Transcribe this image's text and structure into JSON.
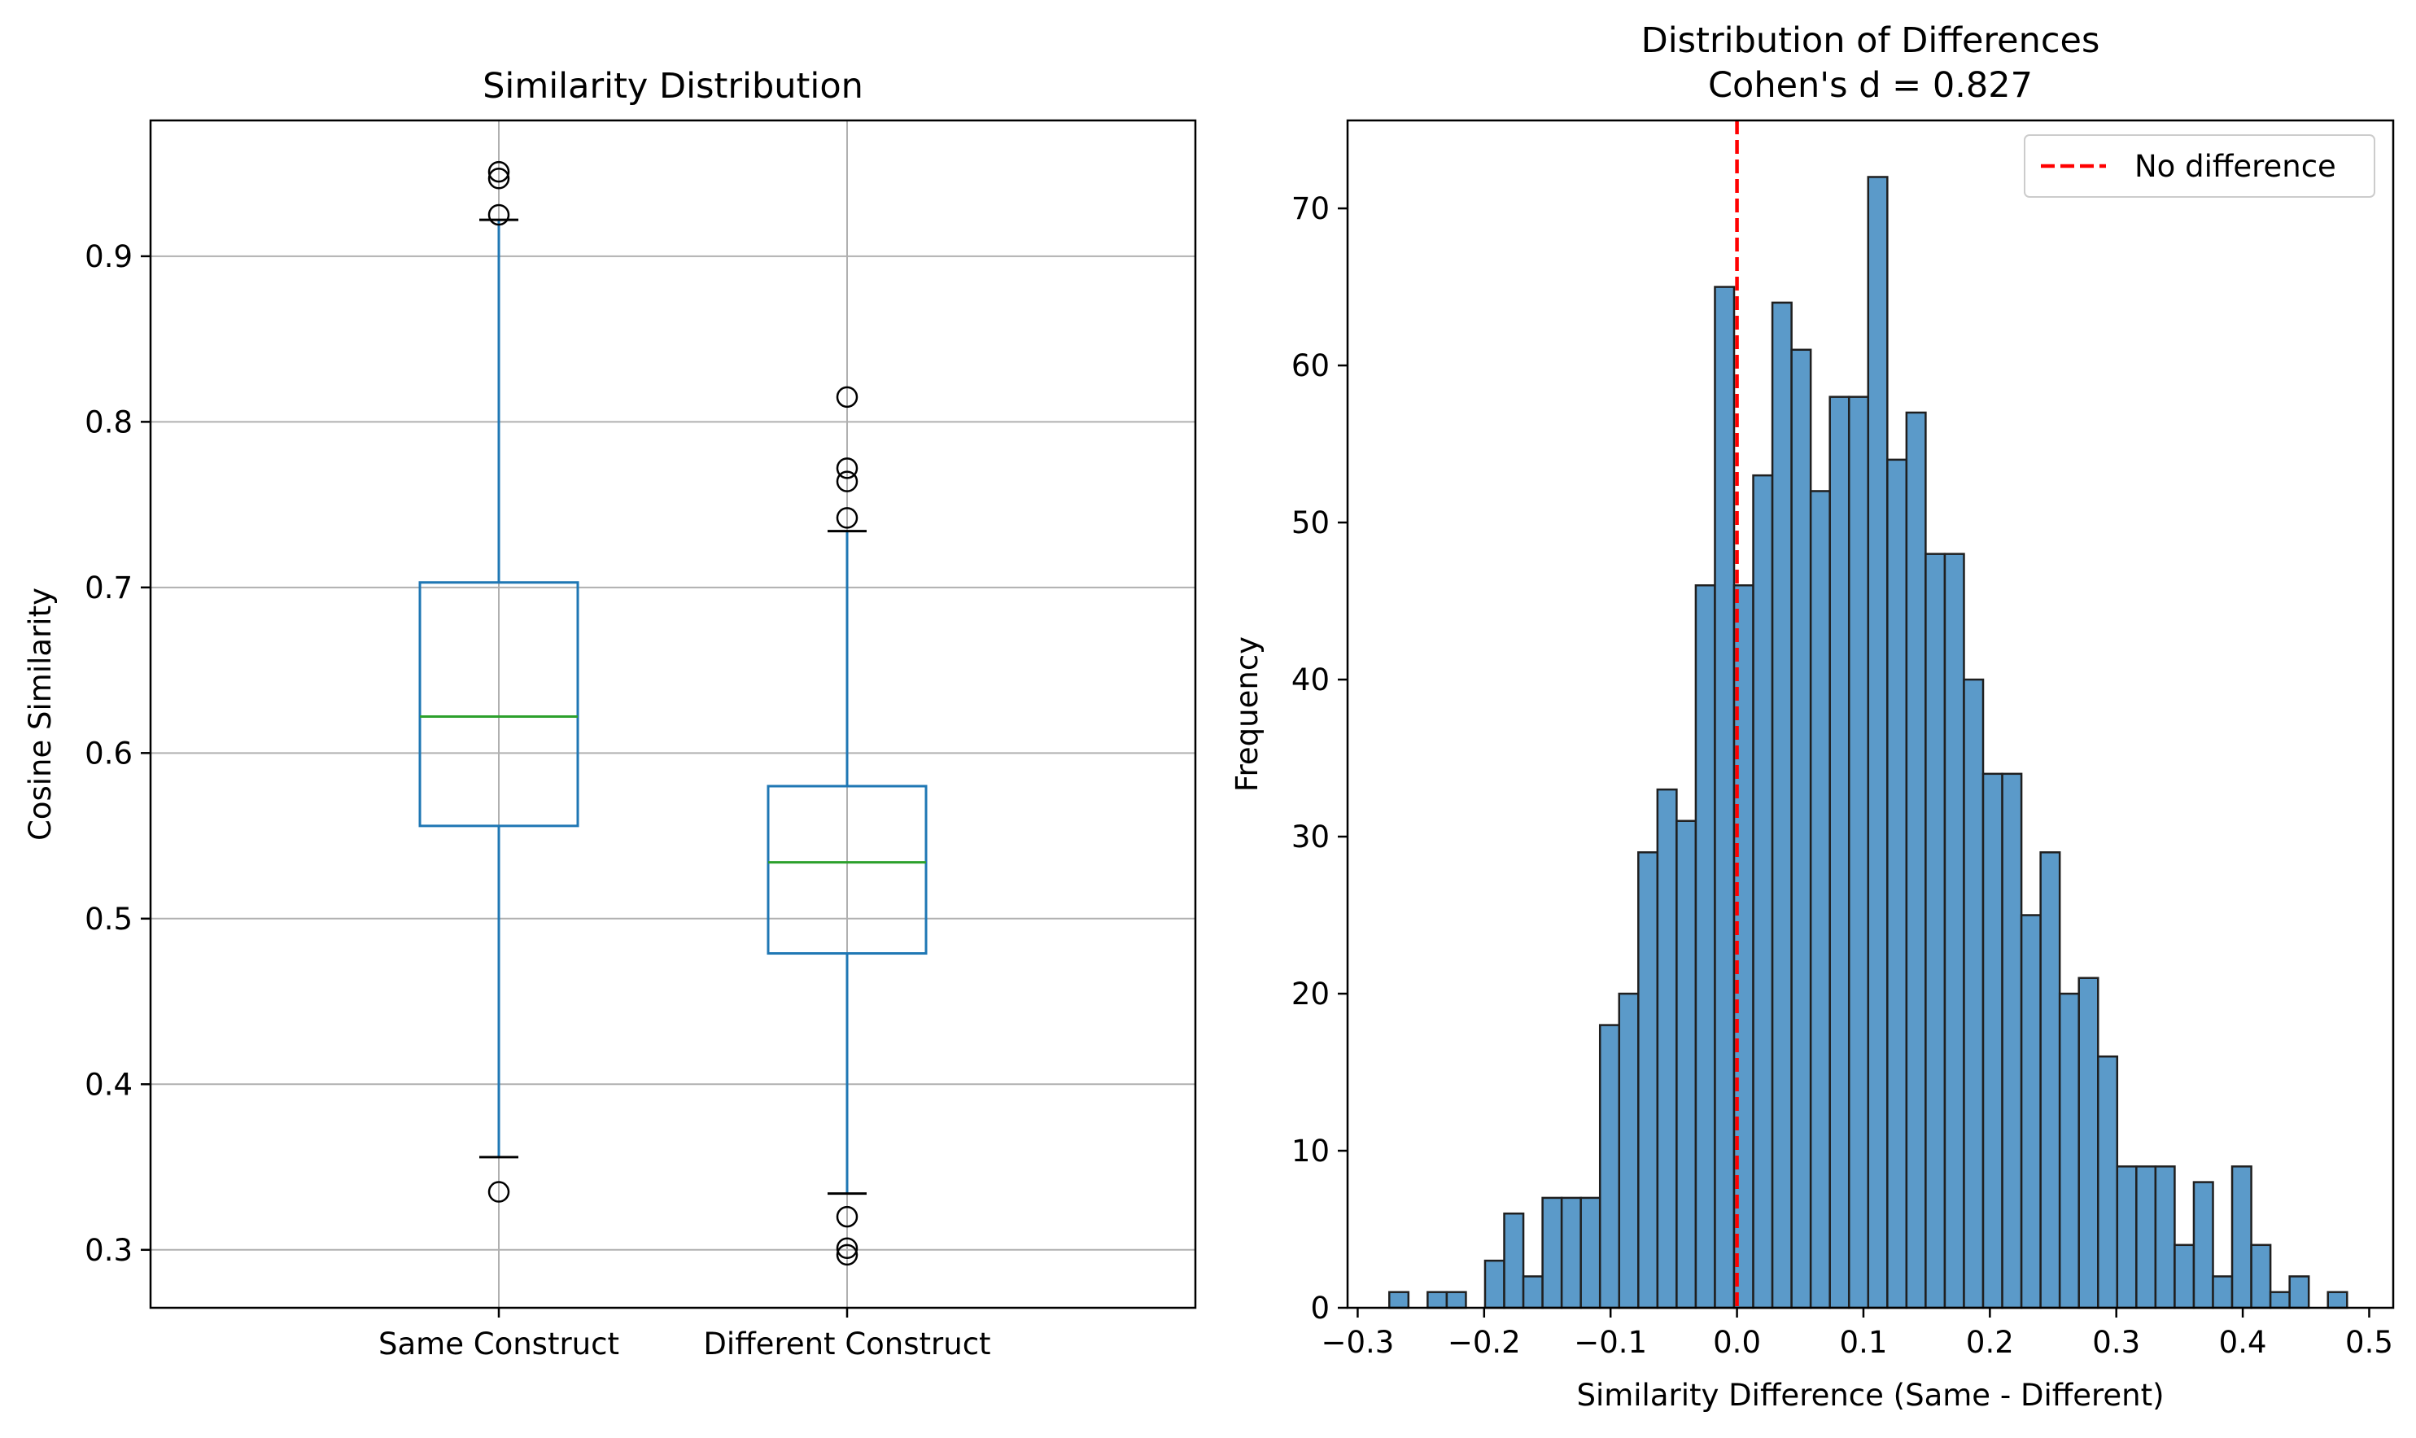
{
  "chart_data": [
    {
      "type": "box",
      "title": "Similarity Distribution",
      "xlabel": "",
      "ylabel": "Cosine Similarity",
      "ylim": [
        0.265,
        0.982
      ],
      "yticks": [
        0.3,
        0.4,
        0.5,
        0.6,
        0.7,
        0.8,
        0.9
      ],
      "ytick_labels": [
        "0.3",
        "0.4",
        "0.5",
        "0.6",
        "0.7",
        "0.8",
        "0.9"
      ],
      "grid": true,
      "colors": {
        "box": "#1f77b4",
        "median": "#2ca02c",
        "grid": "#b0b0b0"
      },
      "categories": [
        "Same Construct",
        "Different Construct"
      ],
      "boxes": [
        {
          "name": "Same Construct",
          "whisker_low": 0.356,
          "q1": 0.556,
          "median": 0.622,
          "q3": 0.703,
          "whisker_high": 0.922,
          "outliers": [
            0.335,
            0.925,
            0.947,
            0.951
          ]
        },
        {
          "name": "Different Construct",
          "whisker_low": 0.334,
          "q1": 0.479,
          "median": 0.534,
          "q3": 0.58,
          "whisker_high": 0.734,
          "outliers": [
            0.297,
            0.301,
            0.32,
            0.742,
            0.764,
            0.772,
            0.815
          ]
        }
      ]
    },
    {
      "type": "histogram",
      "title": "Distribution of Differences",
      "subtitle": "Cohen's d = 0.827",
      "xlabel": "Similarity Difference (Same - Different)",
      "ylabel": "Frequency",
      "xlim": [
        -0.308,
        0.519
      ],
      "ylim": [
        0,
        75.6
      ],
      "xticks": [
        -0.3,
        -0.2,
        -0.1,
        0.0,
        0.1,
        0.2,
        0.3,
        0.4,
        0.5
      ],
      "xtick_labels": [
        "−0.3",
        "−0.2",
        "−0.1",
        "0.0",
        "0.1",
        "0.2",
        "0.3",
        "0.4",
        "0.5"
      ],
      "yticks": [
        0,
        10,
        20,
        30,
        40,
        50,
        60,
        70
      ],
      "ytick_labels": [
        "0",
        "10",
        "20",
        "30",
        "40",
        "50",
        "60",
        "70"
      ],
      "grid": false,
      "colors": {
        "bar": "#5b9ac9",
        "edge": "#1f1f1f",
        "reference": "#ff0000"
      },
      "bins": {
        "start": -0.275,
        "width": 0.01515,
        "counts": [
          1,
          0,
          1,
          1,
          0,
          3,
          6,
          2,
          7,
          7,
          7,
          18,
          20,
          29,
          33,
          31,
          46,
          65,
          46,
          53,
          64,
          61,
          52,
          58,
          58,
          72,
          54,
          57,
          48,
          48,
          40,
          34,
          34,
          25,
          29,
          20,
          21,
          16,
          9,
          9,
          9,
          4,
          8,
          2,
          9,
          4,
          1,
          2,
          0,
          1
        ]
      },
      "reference_line": {
        "x": 0.0,
        "label": "No difference"
      },
      "legend": {
        "location": "top-right",
        "entries": [
          "No difference"
        ]
      }
    }
  ]
}
